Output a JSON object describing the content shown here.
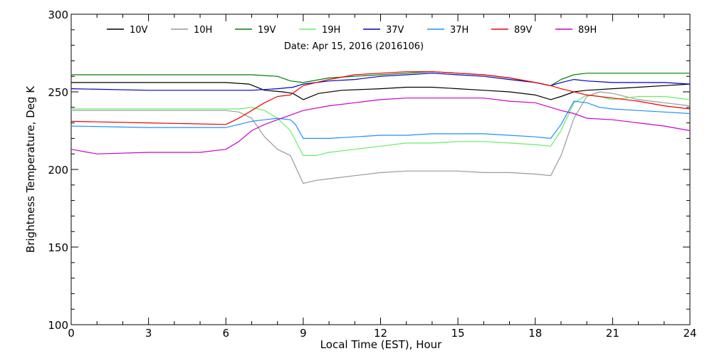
{
  "chart_data": {
    "type": "line",
    "title": "Date: Apr 15, 2016 (2016106)",
    "xlabel": "Local Time (EST), Hour",
    "ylabel": "Brightness Temperature, Deg K",
    "xlim": [
      0,
      24
    ],
    "ylim": [
      100,
      300
    ],
    "xticks": [
      0,
      3,
      6,
      9,
      12,
      15,
      18,
      21,
      24
    ],
    "yticks": [
      100,
      150,
      200,
      250,
      300
    ],
    "grid": false,
    "legend_position": "top",
    "series": [
      {
        "name": "10V",
        "color": "#000000",
        "x": [
          0,
          3,
          6,
          6.9,
          7.5,
          8.2,
          8.6,
          9,
          9.6,
          10.5,
          12,
          13,
          14,
          15,
          16,
          17,
          18,
          18.6,
          19,
          19.5,
          20,
          21,
          22,
          23,
          24
        ],
        "y": [
          256,
          256,
          256,
          255,
          251,
          250,
          249,
          245,
          249,
          251,
          252,
          253,
          253,
          252,
          251,
          250,
          248,
          245,
          247,
          250,
          251,
          252,
          253,
          254,
          255
        ]
      },
      {
        "name": "10H",
        "color": "#999999",
        "x": [
          0,
          3,
          6,
          6.5,
          7,
          7.5,
          8,
          8.5,
          9,
          9.5,
          10,
          11,
          12,
          13,
          14,
          15,
          16,
          17,
          18,
          18.6,
          19,
          19.5,
          20,
          20.5,
          21,
          22,
          23,
          24
        ],
        "y": [
          238,
          238,
          238,
          237,
          233,
          221,
          213,
          209,
          191,
          193,
          194,
          196,
          198,
          199,
          199,
          199,
          198,
          198,
          197,
          196,
          209,
          233,
          247,
          250,
          249,
          245,
          243,
          241
        ]
      },
      {
        "name": "19V",
        "color": "#008000",
        "x": [
          0,
          3,
          6,
          7,
          8,
          8.5,
          9,
          10,
          11,
          12,
          13,
          14,
          15,
          16,
          17,
          18,
          18.6,
          19,
          19.5,
          20,
          21,
          22,
          23,
          24
        ],
        "y": [
          261,
          261,
          261,
          261,
          260,
          257,
          256,
          259,
          260,
          261,
          262,
          263,
          262,
          261,
          259,
          256,
          254,
          258,
          261,
          262,
          262,
          262,
          262,
          262
        ]
      },
      {
        "name": "19H",
        "color": "#66ee66",
        "x": [
          0,
          3,
          6,
          6.5,
          7,
          7.5,
          8,
          8.5,
          9,
          9.5,
          10,
          11,
          12,
          13,
          14,
          15,
          16,
          17,
          18,
          18.6,
          19,
          19.5,
          20,
          20.5,
          21,
          22,
          23,
          24
        ],
        "y": [
          239,
          239,
          239,
          239,
          240,
          238,
          233,
          225,
          209,
          209,
          211,
          213,
          215,
          217,
          217,
          218,
          218,
          217,
          216,
          215,
          225,
          243,
          248,
          247,
          245,
          247,
          247,
          245
        ]
      },
      {
        "name": "37V",
        "color": "#0000cc",
        "x": [
          0,
          3,
          6,
          7,
          8,
          8.6,
          9,
          10,
          11,
          12,
          13,
          14,
          15,
          16,
          17,
          18,
          18.6,
          19,
          19.5,
          20,
          21,
          22,
          23,
          24
        ],
        "y": [
          252,
          251,
          251,
          251,
          252,
          253,
          255,
          257,
          258,
          260,
          261,
          262,
          261,
          260,
          258,
          256,
          254,
          256,
          258,
          257,
          256,
          256,
          256,
          255
        ]
      },
      {
        "name": "37H",
        "color": "#1e90ff",
        "x": [
          0,
          3,
          6,
          6.5,
          7,
          7.5,
          8,
          8.5,
          8.7,
          9,
          10,
          11,
          12,
          13,
          14,
          15,
          16,
          17,
          18,
          18.6,
          19,
          19.5,
          20,
          20.5,
          21,
          22,
          23,
          24
        ],
        "y": [
          228,
          227,
          227,
          229,
          231,
          232,
          233,
          232,
          229,
          220,
          220,
          221,
          222,
          222,
          223,
          223,
          223,
          222,
          221,
          220,
          229,
          244,
          243,
          240,
          239,
          238,
          237,
          236
        ]
      },
      {
        "name": "89V",
        "color": "#ee0000",
        "x": [
          0,
          3,
          6,
          6.5,
          7,
          7.5,
          8,
          8.5,
          9,
          10,
          11,
          12,
          13,
          14,
          15,
          16,
          17,
          18,
          18.6,
          19,
          19.5,
          20,
          21,
          22,
          23,
          24
        ],
        "y": [
          231,
          230,
          229,
          233,
          238,
          243,
          247,
          248,
          254,
          258,
          261,
          262,
          263,
          263,
          262,
          261,
          259,
          256,
          254,
          252,
          250,
          248,
          246,
          244,
          241,
          239
        ]
      },
      {
        "name": "89H",
        "color": "#cc00cc",
        "x": [
          0,
          1,
          3,
          5,
          6,
          6.5,
          7,
          7.5,
          8,
          8.5,
          9,
          10,
          11,
          12,
          13,
          14,
          15,
          16,
          17,
          18,
          18.6,
          19,
          19.5,
          20,
          21,
          22,
          23,
          24
        ],
        "y": [
          213,
          210,
          211,
          211,
          213,
          218,
          225,
          229,
          232,
          235,
          238,
          241,
          243,
          245,
          246,
          246,
          246,
          246,
          244,
          243,
          240,
          238,
          236,
          233,
          232,
          230,
          228,
          225
        ]
      }
    ]
  }
}
